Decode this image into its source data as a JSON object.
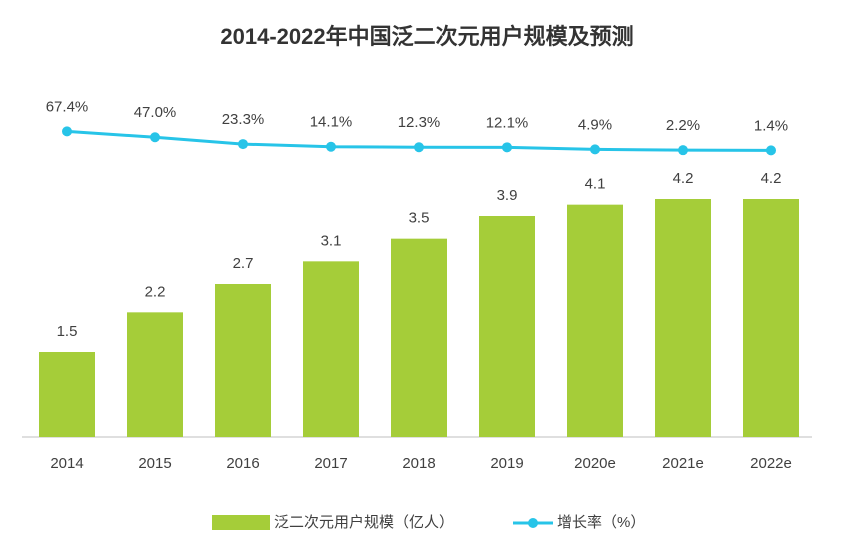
{
  "chart_data": {
    "type": "bar",
    "title": "2014-2022年中国泛二次元用户规模及预测",
    "categories": [
      "2014",
      "2015",
      "2016",
      "2017",
      "2018",
      "2019",
      "2020e",
      "2021e",
      "2022e"
    ],
    "series": [
      {
        "name": "泛二次元用户规模（亿人）",
        "type": "bar",
        "color": "#a5cd39",
        "values": [
          1.5,
          2.2,
          2.7,
          3.1,
          3.5,
          3.9,
          4.1,
          4.2,
          4.2
        ]
      },
      {
        "name": "增长率（%）",
        "type": "line",
        "axis": "y2",
        "color": "#27c4e8",
        "values": [
          67.4,
          47.0,
          23.3,
          14.1,
          12.3,
          12.1,
          4.9,
          2.2,
          1.4
        ],
        "value_labels": [
          "67.4%",
          "47.0%",
          "23.3%",
          "14.1%",
          "12.3%",
          "12.1%",
          "4.9%",
          "2.2%",
          "1.4%"
        ]
      }
    ],
    "ylim": [
      0,
      7.5
    ],
    "y2lim": [
      0,
      100
    ]
  }
}
